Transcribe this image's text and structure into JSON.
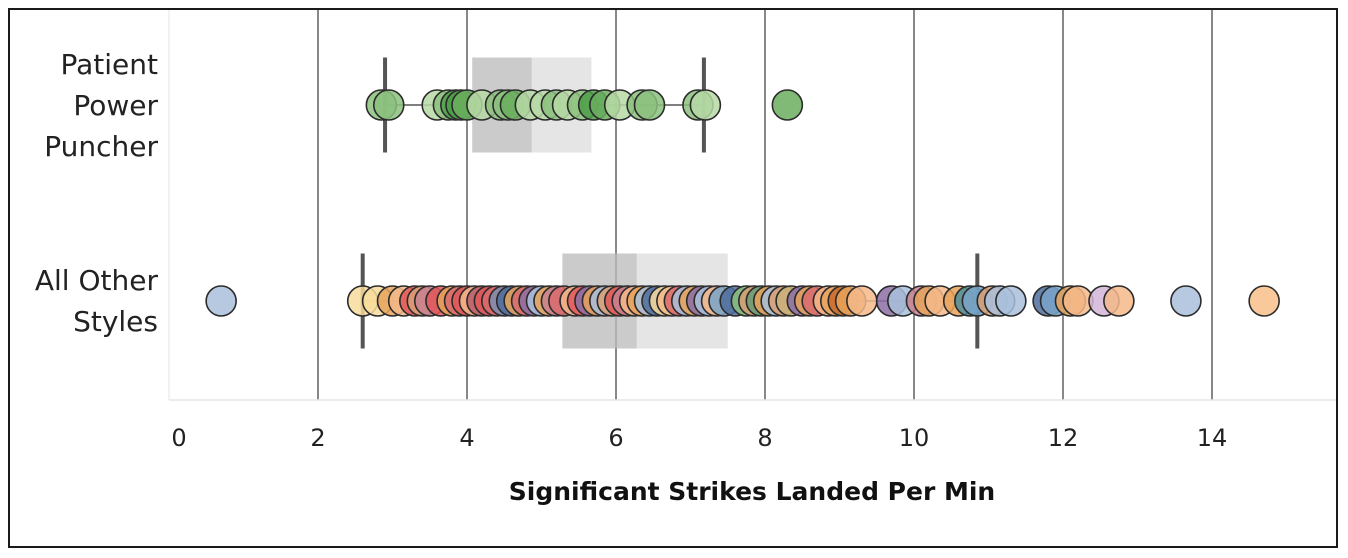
{
  "chart_data": {
    "type": "boxplot",
    "xlabel": "Significant Strikes Landed Per Min",
    "xlim": [
      0,
      15.7
    ],
    "xticks": [
      0,
      2,
      4,
      6,
      8,
      10,
      12,
      14
    ],
    "grid": "vertical",
    "categories": [
      {
        "label_lines": [
          "Patient",
          "Power",
          "Puncher"
        ],
        "box": {
          "whisker_low": 2.9,
          "q1": 4.07,
          "median": 4.87,
          "q3": 5.67,
          "whisker_high": 7.18
        },
        "points": [
          {
            "x": 2.85,
            "color": "#8cc17e"
          },
          {
            "x": 2.95,
            "color": "#8cc17e"
          },
          {
            "x": 3.6,
            "color": "#b7d9a6"
          },
          {
            "x": 3.75,
            "color": "#8cc17e"
          },
          {
            "x": 3.85,
            "color": "#4e9d48"
          },
          {
            "x": 3.92,
            "color": "#4e9d48"
          },
          {
            "x": 4.0,
            "color": "#6aae5e"
          },
          {
            "x": 4.2,
            "color": "#b7d9a6"
          },
          {
            "x": 4.45,
            "color": "#8cc17e"
          },
          {
            "x": 4.55,
            "color": "#8cc17e"
          },
          {
            "x": 4.65,
            "color": "#6aae5e"
          },
          {
            "x": 4.85,
            "color": "#b7d9a6"
          },
          {
            "x": 5.05,
            "color": "#b7d9a6"
          },
          {
            "x": 5.2,
            "color": "#8cc17e"
          },
          {
            "x": 5.35,
            "color": "#b7d9a6"
          },
          {
            "x": 5.55,
            "color": "#8cc17e"
          },
          {
            "x": 5.7,
            "color": "#4e9d48"
          },
          {
            "x": 5.85,
            "color": "#6aae5e"
          },
          {
            "x": 6.05,
            "color": "#b7d9a6"
          },
          {
            "x": 6.35,
            "color": "#8cc17e"
          },
          {
            "x": 6.45,
            "color": "#8cc17e"
          },
          {
            "x": 7.1,
            "color": "#8cc17e"
          },
          {
            "x": 7.2,
            "color": "#b7d9a6"
          },
          {
            "x": 8.3,
            "color": "#6aae5e"
          }
        ]
      },
      {
        "label_lines": [
          "All Other",
          "Styles"
        ],
        "box": {
          "whisker_low": 2.6,
          "q1": 5.28,
          "median": 6.28,
          "q3": 7.5,
          "whisker_high": 10.85
        },
        "points": [
          {
            "x": 0.7,
            "color": "#a9bfdc"
          },
          {
            "x": 2.6,
            "color": "#f8dc9c"
          },
          {
            "x": 2.8,
            "color": "#f8dc9c"
          },
          {
            "x": 3.0,
            "color": "#e7a35a"
          },
          {
            "x": 3.15,
            "color": "#f4b98a"
          },
          {
            "x": 3.3,
            "color": "#e15759"
          },
          {
            "x": 3.4,
            "color": "#d8a074"
          },
          {
            "x": 3.5,
            "color": "#c9818f"
          },
          {
            "x": 3.65,
            "color": "#e15759"
          },
          {
            "x": 3.8,
            "color": "#e7a35a"
          },
          {
            "x": 3.9,
            "color": "#d96b6d"
          },
          {
            "x": 4.0,
            "color": "#e15759"
          },
          {
            "x": 4.1,
            "color": "#f4b98a"
          },
          {
            "x": 4.2,
            "color": "#b85d6b"
          },
          {
            "x": 4.3,
            "color": "#e15759"
          },
          {
            "x": 4.4,
            "color": "#d96b6d"
          },
          {
            "x": 4.5,
            "color": "#7d8fb0"
          },
          {
            "x": 4.6,
            "color": "#4e6d9e"
          },
          {
            "x": 4.7,
            "color": "#e7a35a"
          },
          {
            "x": 4.8,
            "color": "#d96b6d"
          },
          {
            "x": 4.9,
            "color": "#8c6fa6"
          },
          {
            "x": 5.0,
            "color": "#a9bfdc"
          },
          {
            "x": 5.1,
            "color": "#e7a35a"
          },
          {
            "x": 5.2,
            "color": "#c9818f"
          },
          {
            "x": 5.3,
            "color": "#d96b6d"
          },
          {
            "x": 5.45,
            "color": "#f4b98a"
          },
          {
            "x": 5.55,
            "color": "#e15759"
          },
          {
            "x": 5.65,
            "color": "#8c6fa6"
          },
          {
            "x": 5.75,
            "color": "#e7a35a"
          },
          {
            "x": 5.85,
            "color": "#a9bfdc"
          },
          {
            "x": 5.95,
            "color": "#d8a074"
          },
          {
            "x": 6.05,
            "color": "#e15759"
          },
          {
            "x": 6.15,
            "color": "#c9818f"
          },
          {
            "x": 6.25,
            "color": "#f4b98a"
          },
          {
            "x": 6.35,
            "color": "#e7a35a"
          },
          {
            "x": 6.45,
            "color": "#a9bfdc"
          },
          {
            "x": 6.55,
            "color": "#4e6d9e"
          },
          {
            "x": 6.65,
            "color": "#f8dc9c"
          },
          {
            "x": 6.75,
            "color": "#f4b98a"
          },
          {
            "x": 6.85,
            "color": "#d96b6d"
          },
          {
            "x": 6.95,
            "color": "#a9bfdc"
          },
          {
            "x": 7.05,
            "color": "#e7a35a"
          },
          {
            "x": 7.15,
            "color": "#8c6fa6"
          },
          {
            "x": 7.25,
            "color": "#a9bfdc"
          },
          {
            "x": 7.35,
            "color": "#f4b98a"
          },
          {
            "x": 7.45,
            "color": "#7aa5c9"
          },
          {
            "x": 7.6,
            "color": "#4e6d9e"
          },
          {
            "x": 7.75,
            "color": "#8cc17e"
          },
          {
            "x": 7.85,
            "color": "#d8a074"
          },
          {
            "x": 7.95,
            "color": "#6a9a76"
          },
          {
            "x": 8.05,
            "color": "#e7a35a"
          },
          {
            "x": 8.15,
            "color": "#a9bfdc"
          },
          {
            "x": 8.25,
            "color": "#d8a074"
          },
          {
            "x": 8.35,
            "color": "#c9b07a"
          },
          {
            "x": 8.5,
            "color": "#8c6fa6"
          },
          {
            "x": 8.6,
            "color": "#e7a35a"
          },
          {
            "x": 8.7,
            "color": "#d96b6d"
          },
          {
            "x": 8.85,
            "color": "#f4b98a"
          },
          {
            "x": 8.95,
            "color": "#e7a35a"
          },
          {
            "x": 9.05,
            "color": "#c96a2a"
          },
          {
            "x": 9.15,
            "color": "#e7a35a"
          },
          {
            "x": 9.3,
            "color": "#f4b98a"
          },
          {
            "x": 9.7,
            "color": "#8c6fa6"
          },
          {
            "x": 9.85,
            "color": "#a9bfdc"
          },
          {
            "x": 10.1,
            "color": "#c9818f"
          },
          {
            "x": 10.2,
            "color": "#e7a35a"
          },
          {
            "x": 10.35,
            "color": "#f4b98a"
          },
          {
            "x": 10.6,
            "color": "#e7a35a"
          },
          {
            "x": 10.75,
            "color": "#4e8f9e"
          },
          {
            "x": 10.85,
            "color": "#7aa5c9"
          },
          {
            "x": 11.05,
            "color": "#d8a074"
          },
          {
            "x": 11.15,
            "color": "#a9bfdc"
          },
          {
            "x": 11.3,
            "color": "#a9bfdc"
          },
          {
            "x": 11.8,
            "color": "#4e6d9e"
          },
          {
            "x": 11.9,
            "color": "#7aa5c9"
          },
          {
            "x": 12.1,
            "color": "#e7a35a"
          },
          {
            "x": 12.2,
            "color": "#f4b98a"
          },
          {
            "x": 12.55,
            "color": "#d2b5d6"
          },
          {
            "x": 12.75,
            "color": "#f4b98a"
          },
          {
            "x": 13.65,
            "color": "#a9bfdc"
          },
          {
            "x": 14.7,
            "color": "#f8c08a"
          }
        ]
      }
    ]
  }
}
